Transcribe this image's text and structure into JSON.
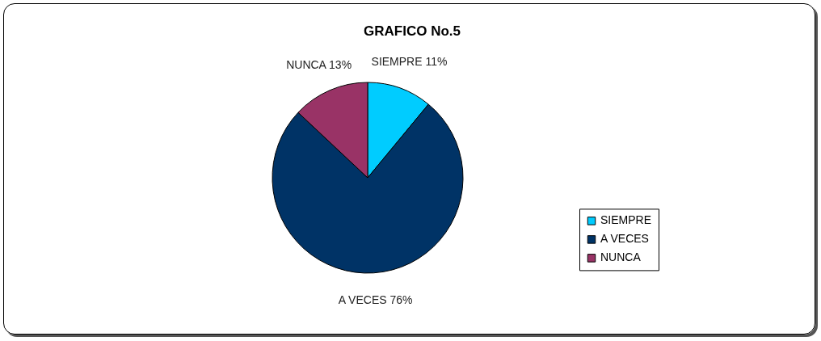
{
  "chart_data": {
    "type": "pie",
    "title": "GRAFICO No.5",
    "categories": [
      "SIEMPRE",
      "A VECES",
      "NUNCA"
    ],
    "values": [
      11,
      76,
      13
    ],
    "colors": [
      "#00ccff",
      "#003366",
      "#993366"
    ],
    "value_labels": [
      "SIEMPRE 11%",
      "A VECES 76%",
      "NUNCA 13%"
    ],
    "legend": "right"
  }
}
